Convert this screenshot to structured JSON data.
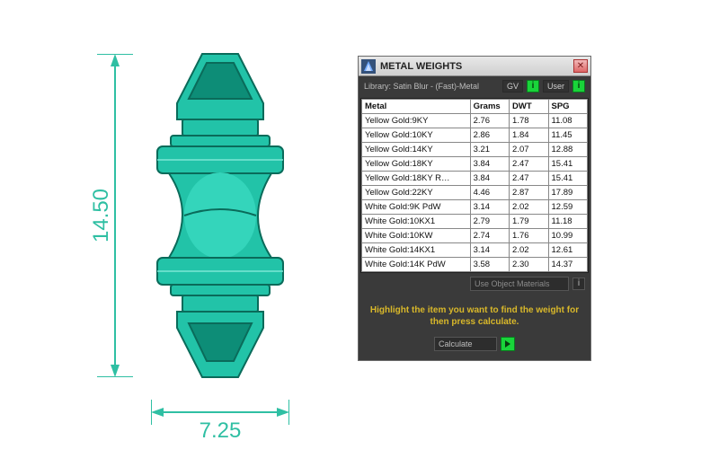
{
  "drawing": {
    "height_label": "14.50",
    "width_label": "7.25",
    "dim_color": "#2fbfa3",
    "part_fill": "#22c3a8",
    "part_stroke": "#0a6b5a",
    "part_highlight": "#7ce8d6"
  },
  "dialog": {
    "title": "METAL WEIGHTS",
    "library_label": "Library: Satin Blur - (Fast)-Metal",
    "gv_label": "GV",
    "user_label": "User",
    "close_glyph": "✕",
    "columns": [
      "Metal",
      "Grams",
      "DWT",
      "SPG"
    ],
    "rows": [
      {
        "metal": "Yellow Gold:9KY",
        "grams": "2.76",
        "dwt": "1.78",
        "spg": "11.08"
      },
      {
        "metal": "Yellow Gold:10KY",
        "grams": "2.86",
        "dwt": "1.84",
        "spg": "11.45"
      },
      {
        "metal": "Yellow Gold:14KY",
        "grams": "3.21",
        "dwt": "2.07",
        "spg": "12.88"
      },
      {
        "metal": "Yellow Gold:18KY",
        "grams": "3.84",
        "dwt": "2.47",
        "spg": "15.41"
      },
      {
        "metal": "Yellow Gold:18KY R…",
        "grams": "3.84",
        "dwt": "2.47",
        "spg": "15.41"
      },
      {
        "metal": "Yellow Gold:22KY",
        "grams": "4.46",
        "dwt": "2.87",
        "spg": "17.89"
      },
      {
        "metal": "White Gold:9K PdW",
        "grams": "3.14",
        "dwt": "2.02",
        "spg": "12.59"
      },
      {
        "metal": "White Gold:10KX1",
        "grams": "2.79",
        "dwt": "1.79",
        "spg": "11.18"
      },
      {
        "metal": "White Gold:10KW",
        "grams": "2.74",
        "dwt": "1.76",
        "spg": "10.99"
      },
      {
        "metal": "White Gold:14KX1",
        "grams": "3.14",
        "dwt": "2.02",
        "spg": "12.61"
      },
      {
        "metal": "White Gold:14K PdW",
        "grams": "3.58",
        "dwt": "2.30",
        "spg": "14.37"
      }
    ],
    "materials_label": "Use Object Materials",
    "hint": "Highlight the item you want to find the weight for then press calculate.",
    "calc_label": "Calculate"
  },
  "colors": {
    "win_bg": "#3a3a3a",
    "accent_green": "#19d43a",
    "hint_yellow": "#d9b82a"
  }
}
